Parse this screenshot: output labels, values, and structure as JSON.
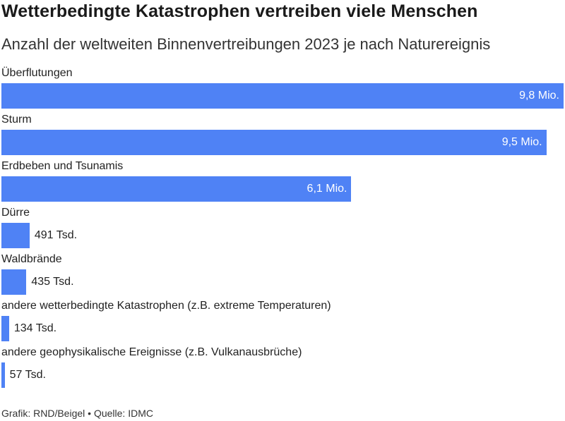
{
  "title": "Wetterbedingte Katastrophen vertreiben viele Menschen",
  "subtitle": "Anzahl der weltweiten Binnenvertreibungen 2023 je nach Naturereignis",
  "footer": {
    "credit": "Grafik: RND/Beigel",
    "separator": "•",
    "source": "Quelle: IDMC"
  },
  "colors": {
    "bar": "#4f82f5"
  },
  "chart_data": {
    "type": "bar",
    "orientation": "horizontal",
    "categories": [
      "Überflutungen",
      "Sturm",
      "Erdbeben und Tsunamis",
      "Dürre",
      "Waldbrände",
      "andere wetterbedingte Katastrophen (z.B. extreme Temperaturen)",
      "andere geophysikalische Ereignisse (z.B. Vulkanausbrüche)"
    ],
    "values": [
      9800000,
      9500000,
      6100000,
      491000,
      435000,
      134000,
      57000
    ],
    "value_labels": [
      "9,8 Mio.",
      "9,5 Mio.",
      "6,1 Mio.",
      "491 Tsd.",
      "435 Tsd.",
      "134 Tsd.",
      "57 Tsd."
    ],
    "xlim": [
      0,
      9800000
    ],
    "grid": false,
    "title": "Wetterbedingte Katastrophen vertreiben viele Menschen",
    "subtitle": "Anzahl der weltweiten Binnenvertreibungen 2023 je nach Naturereignis"
  }
}
